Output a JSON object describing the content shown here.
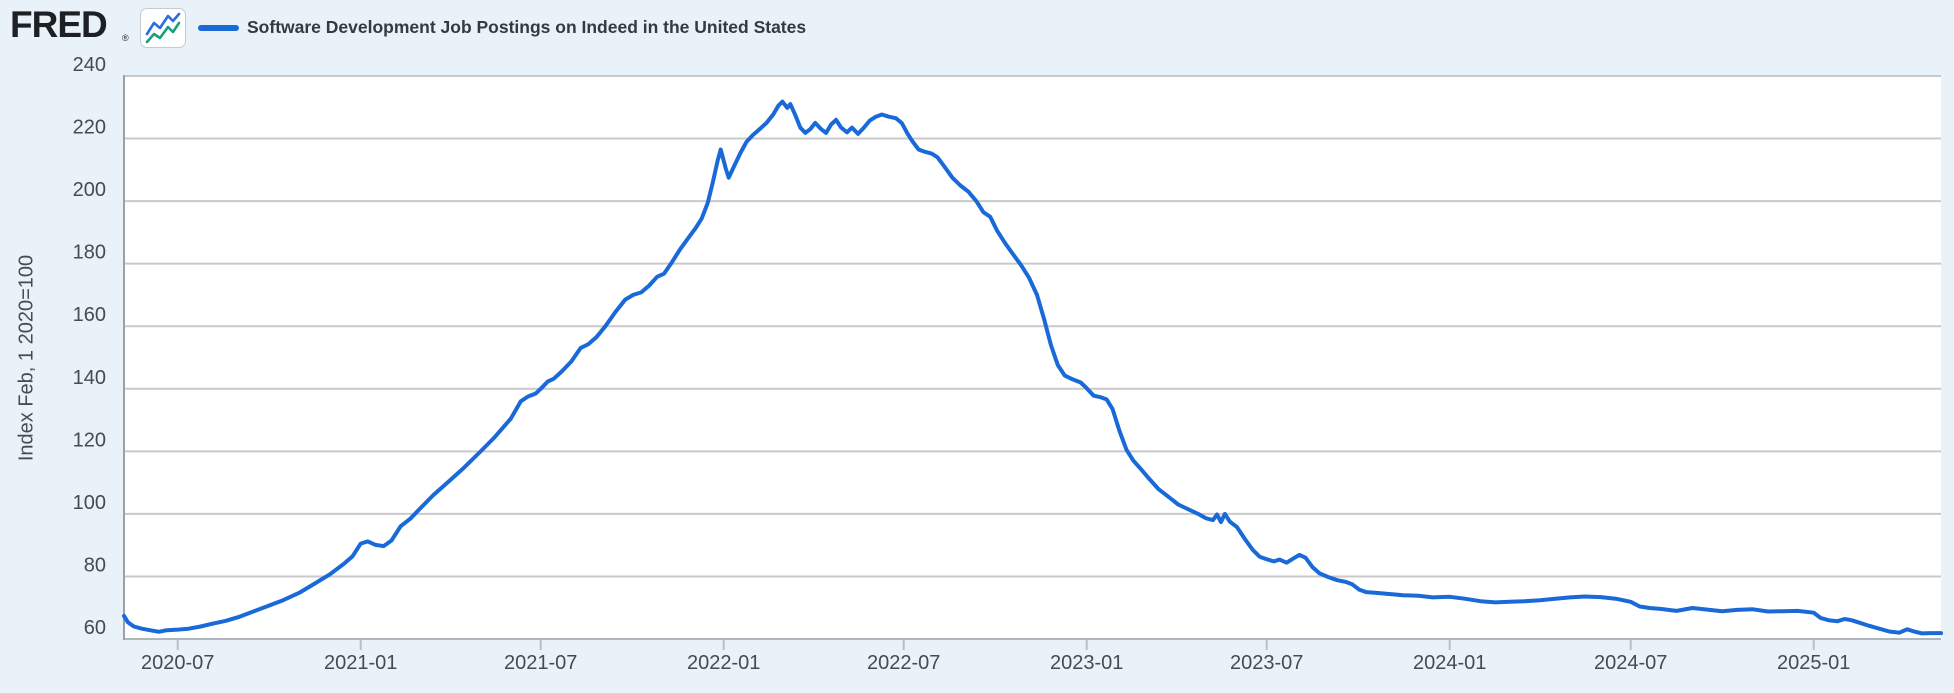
{
  "header": {
    "logo_text": "FRED",
    "registered_mark": "®",
    "legend_label": "Software Development Job Postings on Indeed in the United States"
  },
  "colors": {
    "background": "#e9f1f9",
    "plot_background": "#ffffff",
    "gridline": "#c9c9c9",
    "axis_line": "#9aa1a9",
    "bottom_axis_line": "#b0b6bd",
    "tick_mark": "#b9bfc7",
    "series_line": "#1969d8",
    "axis_text": "#444b53",
    "title_text": "#333a40",
    "logo_icon_blue": "#2b6cdf",
    "logo_icon_teal": "#18a07c"
  },
  "chart_data": {
    "type": "line",
    "title": "Software Development Job Postings on Indeed in the United States",
    "ylabel": "Index Feb, 1 2020=100",
    "xlabel": "",
    "ylim": [
      60,
      240
    ],
    "yticks": [
      60,
      80,
      100,
      120,
      140,
      160,
      180,
      200,
      220,
      240
    ],
    "xticks": [
      {
        "date": "2020-07-01",
        "label": "2020-07"
      },
      {
        "date": "2021-01-01",
        "label": "2021-01"
      },
      {
        "date": "2021-07-01",
        "label": "2021-07"
      },
      {
        "date": "2022-01-01",
        "label": "2022-01"
      },
      {
        "date": "2022-07-01",
        "label": "2022-07"
      },
      {
        "date": "2023-01-01",
        "label": "2023-01"
      },
      {
        "date": "2023-07-01",
        "label": "2023-07"
      },
      {
        "date": "2024-01-01",
        "label": "2024-01"
      },
      {
        "date": "2024-07-01",
        "label": "2024-07"
      },
      {
        "date": "2025-01-01",
        "label": "2025-01"
      }
    ],
    "grid": true,
    "legend_position": "top-left",
    "series": [
      {
        "name": "Software Development Job Postings on Indeed in the United States",
        "points": [
          [
            "2020-05-08",
            67.4
          ],
          [
            "2020-05-12",
            65.3
          ],
          [
            "2020-05-18",
            64.0
          ],
          [
            "2020-05-26",
            63.3
          ],
          [
            "2020-06-03",
            62.8
          ],
          [
            "2020-06-12",
            62.3
          ],
          [
            "2020-06-20",
            62.8
          ],
          [
            "2020-07-01",
            63.0
          ],
          [
            "2020-07-12",
            63.3
          ],
          [
            "2020-07-24",
            64.0
          ],
          [
            "2020-08-05",
            64.9
          ],
          [
            "2020-08-18",
            65.8
          ],
          [
            "2020-09-01",
            67.1
          ],
          [
            "2020-09-15",
            68.8
          ],
          [
            "2020-10-01",
            70.7
          ],
          [
            "2020-10-15",
            72.4
          ],
          [
            "2020-11-01",
            74.9
          ],
          [
            "2020-11-15",
            77.6
          ],
          [
            "2020-12-01",
            80.7
          ],
          [
            "2020-12-15",
            84.0
          ],
          [
            "2020-12-24",
            86.5
          ],
          [
            "2021-01-01",
            90.5
          ],
          [
            "2021-01-08",
            91.2
          ],
          [
            "2021-01-16",
            90.1
          ],
          [
            "2021-01-24",
            89.7
          ],
          [
            "2021-02-01",
            91.5
          ],
          [
            "2021-02-10",
            96.0
          ],
          [
            "2021-02-20",
            98.5
          ],
          [
            "2021-03-01",
            101.5
          ],
          [
            "2021-03-15",
            106.0
          ],
          [
            "2021-04-01",
            110.8
          ],
          [
            "2021-04-15",
            114.8
          ],
          [
            "2021-05-01",
            119.8
          ],
          [
            "2021-05-15",
            124.3
          ],
          [
            "2021-06-01",
            130.5
          ],
          [
            "2021-06-11",
            136.0
          ],
          [
            "2021-06-18",
            137.5
          ],
          [
            "2021-06-26",
            138.5
          ],
          [
            "2021-07-01",
            140.0
          ],
          [
            "2021-07-08",
            142.3
          ],
          [
            "2021-07-14",
            143.2
          ],
          [
            "2021-07-22",
            145.5
          ],
          [
            "2021-08-01",
            148.8
          ],
          [
            "2021-08-10",
            153.0
          ],
          [
            "2021-08-18",
            154.3
          ],
          [
            "2021-08-26",
            156.5
          ],
          [
            "2021-09-04",
            160.0
          ],
          [
            "2021-09-14",
            164.5
          ],
          [
            "2021-09-24",
            168.5
          ],
          [
            "2021-10-02",
            170.0
          ],
          [
            "2021-10-10",
            170.8
          ],
          [
            "2021-10-18",
            173.0
          ],
          [
            "2021-10-26",
            175.8
          ],
          [
            "2021-11-02",
            176.8
          ],
          [
            "2021-11-10",
            180.5
          ],
          [
            "2021-11-18",
            184.5
          ],
          [
            "2021-11-26",
            188.0
          ],
          [
            "2021-12-04",
            191.5
          ],
          [
            "2021-12-10",
            194.5
          ],
          [
            "2021-12-16",
            199.5
          ],
          [
            "2021-12-21",
            206.0
          ],
          [
            "2021-12-26",
            213.0
          ],
          [
            "2021-12-29",
            216.5
          ],
          [
            "2022-01-03",
            210.5
          ],
          [
            "2022-01-06",
            207.5
          ],
          [
            "2022-01-12",
            211.5
          ],
          [
            "2022-01-18",
            215.5
          ],
          [
            "2022-01-24",
            219.0
          ],
          [
            "2022-01-30",
            221.0
          ],
          [
            "2022-02-06",
            223.0
          ],
          [
            "2022-02-13",
            225.0
          ],
          [
            "2022-02-20",
            227.8
          ],
          [
            "2022-02-25",
            230.5
          ],
          [
            "2022-03-01",
            231.8
          ],
          [
            "2022-03-06",
            229.8
          ],
          [
            "2022-03-09",
            231.0
          ],
          [
            "2022-03-14",
            227.5
          ],
          [
            "2022-03-19",
            223.5
          ],
          [
            "2022-03-24",
            221.8
          ],
          [
            "2022-03-29",
            223.0
          ],
          [
            "2022-04-03",
            225.0
          ],
          [
            "2022-04-09",
            223.0
          ],
          [
            "2022-04-14",
            221.8
          ],
          [
            "2022-04-19",
            224.5
          ],
          [
            "2022-04-24",
            226.0
          ],
          [
            "2022-04-29",
            223.5
          ],
          [
            "2022-05-05",
            222.0
          ],
          [
            "2022-05-10",
            223.5
          ],
          [
            "2022-05-16",
            221.5
          ],
          [
            "2022-05-22",
            223.5
          ],
          [
            "2022-05-28",
            225.8
          ],
          [
            "2022-06-03",
            227.0
          ],
          [
            "2022-06-09",
            227.7
          ],
          [
            "2022-06-16",
            227.0
          ],
          [
            "2022-06-23",
            226.5
          ],
          [
            "2022-06-29",
            225.0
          ],
          [
            "2022-07-05",
            221.5
          ],
          [
            "2022-07-10",
            219.0
          ],
          [
            "2022-07-16",
            216.5
          ],
          [
            "2022-07-22",
            215.8
          ],
          [
            "2022-07-29",
            215.2
          ],
          [
            "2022-08-04",
            214.0
          ],
          [
            "2022-08-11",
            211.0
          ],
          [
            "2022-08-19",
            207.5
          ],
          [
            "2022-08-27",
            205.0
          ],
          [
            "2022-09-04",
            203.0
          ],
          [
            "2022-09-12",
            200.0
          ],
          [
            "2022-09-19",
            196.5
          ],
          [
            "2022-09-26",
            195.0
          ],
          [
            "2022-10-03",
            190.5
          ],
          [
            "2022-10-11",
            186.5
          ],
          [
            "2022-10-19",
            183.0
          ],
          [
            "2022-10-27",
            179.5
          ],
          [
            "2022-11-04",
            175.5
          ],
          [
            "2022-11-12",
            170.0
          ],
          [
            "2022-11-19",
            162.5
          ],
          [
            "2022-11-26",
            154.0
          ],
          [
            "2022-12-03",
            147.5
          ],
          [
            "2022-12-10",
            144.2
          ],
          [
            "2022-12-18",
            143.0
          ],
          [
            "2022-12-26",
            142.0
          ],
          [
            "2023-01-01",
            140.2
          ],
          [
            "2023-01-08",
            137.8
          ],
          [
            "2023-01-15",
            137.3
          ],
          [
            "2023-01-21",
            136.6
          ],
          [
            "2023-01-27",
            133.5
          ],
          [
            "2023-02-03",
            126.5
          ],
          [
            "2023-02-10",
            120.5
          ],
          [
            "2023-02-17",
            117.0
          ],
          [
            "2023-02-24",
            114.5
          ],
          [
            "2023-03-04",
            111.5
          ],
          [
            "2023-03-14",
            108.0
          ],
          [
            "2023-03-24",
            105.5
          ],
          [
            "2023-04-03",
            103.0
          ],
          [
            "2023-04-13",
            101.5
          ],
          [
            "2023-04-23",
            100.0
          ],
          [
            "2023-05-01",
            98.6
          ],
          [
            "2023-05-08",
            98.0
          ],
          [
            "2023-05-12",
            99.8
          ],
          [
            "2023-05-16",
            97.4
          ],
          [
            "2023-05-20",
            100.0
          ],
          [
            "2023-05-25",
            97.5
          ],
          [
            "2023-06-01",
            95.8
          ],
          [
            "2023-06-09",
            92.0
          ],
          [
            "2023-06-17",
            88.5
          ],
          [
            "2023-06-24",
            86.3
          ],
          [
            "2023-07-01",
            85.5
          ],
          [
            "2023-07-08",
            84.8
          ],
          [
            "2023-07-14",
            85.4
          ],
          [
            "2023-07-21",
            84.4
          ],
          [
            "2023-07-28",
            85.8
          ],
          [
            "2023-08-03",
            86.9
          ],
          [
            "2023-08-09",
            86.0
          ],
          [
            "2023-08-16",
            83.0
          ],
          [
            "2023-08-23",
            81.0
          ],
          [
            "2023-09-01",
            79.8
          ],
          [
            "2023-09-10",
            78.8
          ],
          [
            "2023-09-18",
            78.3
          ],
          [
            "2023-09-25",
            77.5
          ],
          [
            "2023-10-02",
            75.8
          ],
          [
            "2023-10-09",
            75.0
          ],
          [
            "2023-10-18",
            74.8
          ],
          [
            "2023-11-01",
            74.4
          ],
          [
            "2023-11-15",
            74.0
          ],
          [
            "2023-12-01",
            73.8
          ],
          [
            "2023-12-15",
            73.3
          ],
          [
            "2024-01-01",
            73.5
          ],
          [
            "2024-01-16",
            72.9
          ],
          [
            "2024-02-01",
            72.1
          ],
          [
            "2024-02-16",
            71.7
          ],
          [
            "2024-03-01",
            71.9
          ],
          [
            "2024-03-16",
            72.1
          ],
          [
            "2024-04-01",
            72.4
          ],
          [
            "2024-04-16",
            72.9
          ],
          [
            "2024-05-01",
            73.3
          ],
          [
            "2024-05-16",
            73.6
          ],
          [
            "2024-06-01",
            73.4
          ],
          [
            "2024-06-16",
            72.9
          ],
          [
            "2024-07-01",
            71.9
          ],
          [
            "2024-07-10",
            70.4
          ],
          [
            "2024-07-20",
            69.9
          ],
          [
            "2024-08-01",
            69.6
          ],
          [
            "2024-08-16",
            69.0
          ],
          [
            "2024-09-01",
            69.9
          ],
          [
            "2024-09-16",
            69.4
          ],
          [
            "2024-10-01",
            68.9
          ],
          [
            "2024-10-16",
            69.3
          ],
          [
            "2024-11-01",
            69.5
          ],
          [
            "2024-11-16",
            68.8
          ],
          [
            "2024-12-01",
            68.9
          ],
          [
            "2024-12-16",
            69.0
          ],
          [
            "2025-01-01",
            68.4
          ],
          [
            "2025-01-08",
            66.7
          ],
          [
            "2025-01-16",
            66.0
          ],
          [
            "2025-01-25",
            65.7
          ],
          [
            "2025-02-01",
            66.4
          ],
          [
            "2025-02-08",
            66.0
          ],
          [
            "2025-02-16",
            65.2
          ],
          [
            "2025-02-25",
            64.3
          ],
          [
            "2025-03-08",
            63.3
          ],
          [
            "2025-03-18",
            62.4
          ],
          [
            "2025-03-28",
            62.0
          ],
          [
            "2025-04-05",
            63.1
          ],
          [
            "2025-04-12",
            62.4
          ],
          [
            "2025-04-20",
            61.8
          ],
          [
            "2025-04-28",
            61.9
          ],
          [
            "2025-05-09",
            61.9
          ]
        ]
      }
    ]
  }
}
